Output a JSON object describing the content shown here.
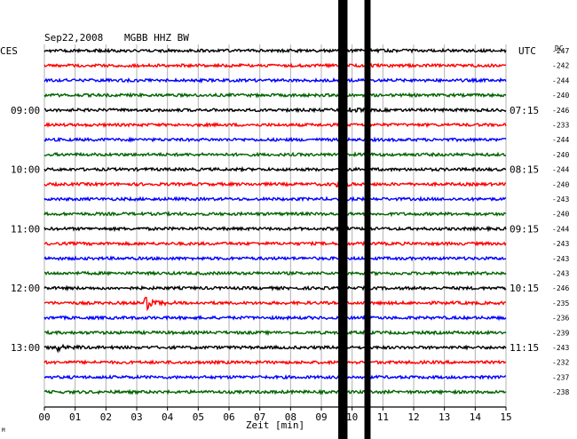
{
  "header": {
    "date": "Sep22,2008",
    "station": "MGBB HHZ BW",
    "left_zone": "CES",
    "right_zone": "UTC",
    "dc_label": "DC"
  },
  "chart_data": {
    "type": "line",
    "title": "Sep22,2008   MGBB HHZ BW",
    "xlabel": "Zeit [min]",
    "ylabel": "",
    "xlim": [
      0,
      15
    ],
    "x_tick_labels": [
      "00",
      "01",
      "02",
      "03",
      "04",
      "05",
      "06",
      "07",
      "08",
      "09",
      "10",
      "11",
      "12",
      "13",
      "14",
      "15"
    ],
    "grid": true,
    "row_minutes": 15,
    "row_colors": [
      "#000000",
      "#ff0000",
      "#0000ff",
      "#006400"
    ],
    "rows": 24,
    "left_time_labels": [
      {
        "row": 4,
        "text": "09:00"
      },
      {
        "row": 8,
        "text": "10:00"
      },
      {
        "row": 12,
        "text": "11:00"
      },
      {
        "row": 16,
        "text": "12:00"
      },
      {
        "row": 20,
        "text": "13:00"
      }
    ],
    "right_time_labels": [
      {
        "row": 4,
        "text": "07:15"
      },
      {
        "row": 8,
        "text": "08:15"
      },
      {
        "row": 12,
        "text": "09:15"
      },
      {
        "row": 16,
        "text": "10:15"
      },
      {
        "row": 20,
        "text": "11:15"
      }
    ],
    "dc_offsets": [
      "-247",
      "-242",
      "-244",
      "-240",
      "-246",
      "-233",
      "-244",
      "-240",
      "-244",
      "-240",
      "-243",
      "-240",
      "-244",
      "-243",
      "-243",
      "-243",
      "-246",
      "-235",
      "-236",
      "-239",
      "-243",
      "-232",
      "-237",
      "-238"
    ],
    "events": [
      {
        "row": 17,
        "minute": 3.3,
        "amplitude": 1.0
      },
      {
        "row": 20,
        "minute": 0.4,
        "amplitude": 0.5
      },
      {
        "row": 9,
        "minute": 9.5,
        "amplitude": 0.4
      },
      {
        "row": 4,
        "minute": 9.7,
        "amplitude": 0.5
      }
    ],
    "saturation_bands": [
      {
        "start_minute": 9.55,
        "end_minute": 9.85
      },
      {
        "start_minute": 10.4,
        "end_minute": 10.6
      }
    ],
    "marker_label": "M"
  }
}
